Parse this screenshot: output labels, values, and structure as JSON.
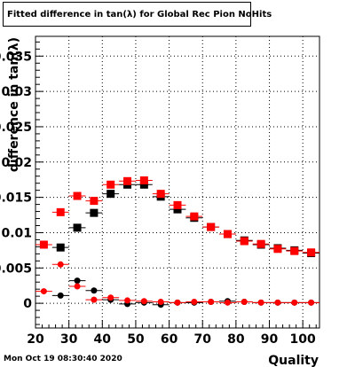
{
  "title": "Fitted difference in tan(λ) for Global Rec Pion NoHits",
  "timestamp": "Mon Oct 19 08:30:40 2020",
  "chart_data": {
    "type": "scatter",
    "xlabel": "Quality",
    "ylabel": "difference in tan(λ)",
    "xlim": [
      20,
      105
    ],
    "ylim": [
      -0.0035,
      0.0378
    ],
    "grid": true,
    "x_ticks": [
      "20",
      "30",
      "40",
      "50",
      "60",
      "70",
      "80",
      "90",
      "100"
    ],
    "y_ticks": [
      "0",
      "0.005",
      "0.01",
      "0.015",
      "0.02",
      "0.025",
      "0.03",
      "0.035"
    ],
    "series": [
      {
        "marker": "square",
        "color": "#000000",
        "points": [
          {
            "x": 27.5,
            "y": 0.0079
          },
          {
            "x": 32.5,
            "y": 0.0107
          },
          {
            "x": 37.5,
            "y": 0.0128
          },
          {
            "x": 42.5,
            "y": 0.0155
          },
          {
            "x": 47.5,
            "y": 0.0168
          },
          {
            "x": 52.5,
            "y": 0.0168
          },
          {
            "x": 57.5,
            "y": 0.0151
          },
          {
            "x": 62.5,
            "y": 0.0133
          },
          {
            "x": 67.5,
            "y": 0.0121
          },
          {
            "x": 72.5,
            "y": 0.0108
          },
          {
            "x": 77.5,
            "y": 0.0098
          },
          {
            "x": 82.5,
            "y": 0.0089
          },
          {
            "x": 87.5,
            "y": 0.0083
          },
          {
            "x": 92.5,
            "y": 0.0078
          },
          {
            "x": 97.5,
            "y": 0.0075
          },
          {
            "x": 102.5,
            "y": 0.0071
          }
        ]
      },
      {
        "marker": "square",
        "color": "#ff0000",
        "points": [
          {
            "x": 22.5,
            "y": 0.0083
          },
          {
            "x": 27.5,
            "y": 0.0129
          },
          {
            "x": 32.5,
            "y": 0.0152
          },
          {
            "x": 37.5,
            "y": 0.0145
          },
          {
            "x": 42.5,
            "y": 0.0168
          },
          {
            "x": 47.5,
            "y": 0.0173
          },
          {
            "x": 52.5,
            "y": 0.0174
          },
          {
            "x": 57.5,
            "y": 0.0155
          },
          {
            "x": 62.5,
            "y": 0.0139
          },
          {
            "x": 67.5,
            "y": 0.0123
          },
          {
            "x": 72.5,
            "y": 0.0108
          },
          {
            "x": 77.5,
            "y": 0.0098
          },
          {
            "x": 82.5,
            "y": 0.0088
          },
          {
            "x": 87.5,
            "y": 0.0084
          },
          {
            "x": 92.5,
            "y": 0.0077
          },
          {
            "x": 97.5,
            "y": 0.0074
          },
          {
            "x": 102.5,
            "y": 0.0072
          }
        ]
      },
      {
        "marker": "circle",
        "color": "#000000",
        "points": [
          {
            "x": 27.5,
            "y": 0.0011
          },
          {
            "x": 32.5,
            "y": 0.0032
          },
          {
            "x": 37.5,
            "y": 0.0018
          },
          {
            "x": 42.5,
            "y": 0.0005
          },
          {
            "x": 47.5,
            "y": -0.0001
          },
          {
            "x": 52.5,
            "y": 0.0001
          },
          {
            "x": 57.5,
            "y": -0.0002
          },
          {
            "x": 62.5,
            "y": 0.0001
          },
          {
            "x": 67.5,
            "y": 0.0001
          },
          {
            "x": 72.5,
            "y": 0.0002
          },
          {
            "x": 77.5,
            "y": 0.0003
          },
          {
            "x": 82.5,
            "y": 0.0002
          },
          {
            "x": 87.5,
            "y": 0.0001
          },
          {
            "x": 92.5,
            "y": 0.0001
          },
          {
            "x": 97.5,
            "y": 0.0001
          },
          {
            "x": 102.5,
            "y": 0.0001
          }
        ]
      },
      {
        "marker": "circle",
        "color": "#ff0000",
        "points": [
          {
            "x": 22.5,
            "y": 0.0017
          },
          {
            "x": 27.5,
            "y": 0.0055
          },
          {
            "x": 32.5,
            "y": 0.0024
          },
          {
            "x": 37.5,
            "y": 0.0005
          },
          {
            "x": 42.5,
            "y": 0.0008
          },
          {
            "x": 47.5,
            "y": 0.0004
          },
          {
            "x": 52.5,
            "y": 0.0003
          },
          {
            "x": 57.5,
            "y": 0.0002
          },
          {
            "x": 62.5,
            "y": 0.0001
          },
          {
            "x": 67.5,
            "y": 0.0002
          },
          {
            "x": 72.5,
            "y": 0.0002
          },
          {
            "x": 77.5,
            "y": 0.0001
          },
          {
            "x": 82.5,
            "y": 0.0002
          },
          {
            "x": 87.5,
            "y": 0.0001
          },
          {
            "x": 92.5,
            "y": 0.0001
          },
          {
            "x": 97.5,
            "y": 0.0001
          },
          {
            "x": 102.5,
            "y": 0.0001
          }
        ]
      }
    ]
  }
}
